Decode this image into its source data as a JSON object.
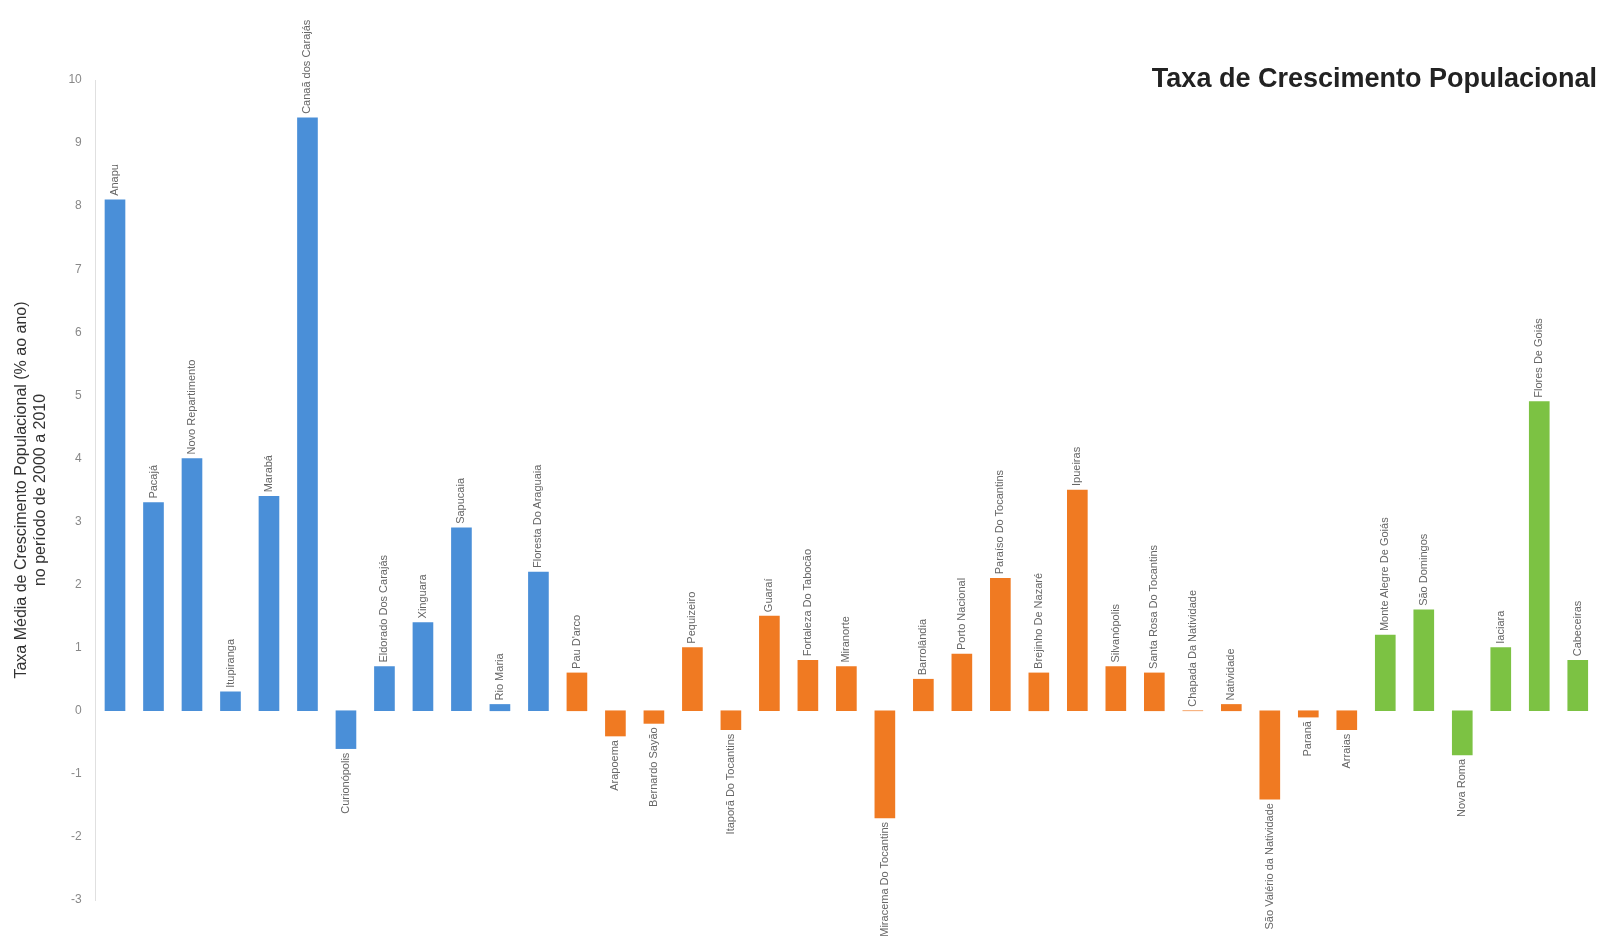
{
  "chart_data": {
    "type": "bar",
    "title": "Taxa de Crescimento Populacional",
    "ylabel": "Taxa Média de Crescimento Populacional (% ao ano)\nno período de 2000 a 2010",
    "categories": [
      "Anapu",
      "Pacajá",
      "Novo Repartimento",
      "Itupiranga",
      "Marabá",
      "Canaã dos Carajás",
      "Curionópolis",
      "Eldorado Dos Carajás",
      "Xinguara",
      "Sapucaia",
      "Rio Maria",
      "Floresta Do Araguaia",
      "Pau D'arco",
      "Arapoema",
      "Bernardo Sayão",
      "Pequizeiro",
      "Itaporã Do Tocantins",
      "Guaraí",
      "Fortaleza Do Tabocão",
      "Miranorte",
      "Miracema Do Tocantins",
      "Barrolândia",
      "Porto Nacional",
      "Paraíso Do Tocantins",
      "Brejinho De Nazaré",
      "Ipueiras",
      "Silvanópolis",
      "Santa Rosa Do Tocantins",
      "Chapada Da Natividade",
      "Natividade",
      "São Valério da Natividade",
      "Paranã",
      "Arraias",
      "Monte Alegre De Goiás",
      "São Domingos",
      "Nova Roma",
      "Iaciara",
      "Flores De Goiás",
      "Cabeceiras"
    ],
    "values": [
      8.1,
      3.3,
      4.0,
      0.3,
      3.4,
      9.4,
      -0.6,
      0.7,
      1.4,
      2.9,
      0.1,
      2.2,
      0.6,
      -0.4,
      -0.2,
      1.0,
      -0.3,
      1.5,
      0.8,
      0.7,
      -1.7,
      0.5,
      0.9,
      2.1,
      0.6,
      3.5,
      0.7,
      0.6,
      0,
      0.1,
      -1.4,
      -0.1,
      -0.3,
      1.2,
      1.6,
      -0.7,
      1.0,
      4.9,
      0.8
    ],
    "colors": [
      "#4a8fd8",
      "#4a8fd8",
      "#4a8fd8",
      "#4a8fd8",
      "#4a8fd8",
      "#4a8fd8",
      "#4a8fd8",
      "#4a8fd8",
      "#4a8fd8",
      "#4a8fd8",
      "#4a8fd8",
      "#4a8fd8",
      "#f07a22",
      "#f07a22",
      "#f07a22",
      "#f07a22",
      "#f07a22",
      "#f07a22",
      "#f07a22",
      "#f07a22",
      "#f07a22",
      "#f07a22",
      "#f07a22",
      "#f07a22",
      "#f07a22",
      "#f07a22",
      "#f07a22",
      "#f07a22",
      "#f07a22",
      "#f07a22",
      "#f07a22",
      "#f07a22",
      "#f07a22",
      "#7cc243",
      "#7cc243",
      "#7cc243",
      "#7cc243",
      "#7cc243",
      "#7cc243"
    ],
    "ylim": [
      -3,
      10
    ],
    "yticks": [
      -3,
      -2,
      -1,
      0,
      1,
      2,
      3,
      4,
      5,
      6,
      7,
      8,
      9,
      10
    ],
    "tick_labels": "y",
    "grid": false,
    "legend": false
  }
}
